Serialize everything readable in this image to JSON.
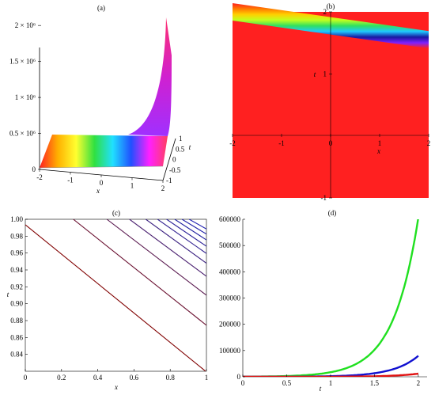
{
  "chart_data": [
    {
      "panel": "(a)",
      "type": "surface",
      "xlabel": "x",
      "ylabel": "t",
      "x_ticks": [
        "-2",
        "-1",
        "0",
        "1",
        "2"
      ],
      "t_ticks": [
        "1",
        "0.5",
        "0",
        "-0.5",
        "-1"
      ],
      "z_ticks": [
        "0",
        "0.5 × 10⁶",
        "1 × 10⁶",
        "1.5 × 10⁶",
        "2 × 10⁶"
      ],
      "z_values": [
        0,
        500000,
        1000000,
        1500000,
        2000000
      ],
      "xlim": [
        -2,
        2
      ],
      "tlim": [
        -1,
        1
      ],
      "zlim": [
        0,
        2200000
      ],
      "colormap": [
        "#ff2020",
        "#ffb000",
        "#ffff30",
        "#30e040",
        "#20e0ff",
        "#2050ff",
        "#ff20ff",
        "#ff4060"
      ]
    },
    {
      "panel": "(b)",
      "type": "heatmap",
      "xlabel": "x",
      "ylabel": "t",
      "x_ticks": [
        "-2",
        "-1",
        "0",
        "1",
        "2"
      ],
      "y_ticks": [
        "2",
        "1",
        "-1"
      ],
      "xlim": [
        -2,
        2
      ],
      "ylim": [
        -1,
        2
      ],
      "background_color": "#ff2020",
      "band": {
        "t_at_x_minus2": 2.0,
        "t_at_x_2": 1.55
      },
      "band_colors": [
        "#ff7a00",
        "#ffd000",
        "#c0ff20",
        "#30e060",
        "#20c8ff",
        "#1818a0",
        "#8020ff"
      ]
    },
    {
      "panel": "(c)",
      "type": "line",
      "xlabel": "x",
      "ylabel": "t",
      "x_ticks": [
        "0",
        "0.2",
        "0.4",
        "0.6",
        "0.8",
        "1"
      ],
      "y_ticks": [
        "1.00",
        "0.98",
        "0.96",
        "0.94",
        "0.92",
        "0.90",
        "0.88",
        "0.86",
        "0.84"
      ],
      "xlim": [
        0,
        1
      ],
      "ylim": [
        0.82,
        1.0
      ],
      "series": [
        {
          "color": "#800000",
          "points": [
            [
              0.0,
              0.9935
            ],
            [
              0.9955,
              0.82
            ]
          ]
        },
        {
          "color": "#6a1030",
          "points": [
            [
              0.265,
              1.0
            ],
            [
              1.0,
              0.8745
            ]
          ]
        },
        {
          "color": "#5a1a50",
          "points": [
            [
              0.45,
              1.0
            ],
            [
              1.0,
              0.91
            ]
          ]
        },
        {
          "color": "#4a2070",
          "points": [
            [
              0.575,
              1.0
            ],
            [
              1.0,
              0.9325
            ]
          ]
        },
        {
          "color": "#3a2080",
          "points": [
            [
              0.665,
              1.0
            ],
            [
              1.0,
              0.948
            ]
          ]
        },
        {
          "color": "#302090",
          "points": [
            [
              0.73,
              1.0
            ],
            [
              1.0,
              0.9595
            ]
          ]
        },
        {
          "color": "#2a2098",
          "points": [
            [
              0.78,
              1.0
            ],
            [
              1.0,
              0.968
            ]
          ]
        },
        {
          "color": "#2020a0",
          "points": [
            [
              0.825,
              1.0
            ],
            [
              1.0,
              0.9755
            ]
          ]
        },
        {
          "color": "#2020a8",
          "points": [
            [
              0.865,
              1.0
            ],
            [
              1.0,
              0.9825
            ]
          ]
        },
        {
          "color": "#2020b0",
          "points": [
            [
              0.905,
              1.0
            ],
            [
              1.0,
              0.9885
            ]
          ]
        }
      ]
    },
    {
      "panel": "(d)",
      "type": "line",
      "xlabel": "t",
      "ylabel": "",
      "x_ticks": [
        "0",
        "0.5",
        "1",
        "1.5",
        "2"
      ],
      "y_ticks": [
        "0",
        "100000",
        "200000",
        "300000",
        "400000",
        "500000",
        "600000"
      ],
      "xlim": [
        0,
        2.1
      ],
      "ylim": [
        0,
        600000
      ],
      "series": [
        {
          "color": "#20e020",
          "A": 500,
          "k": 3.55
        },
        {
          "color": "#1010d0",
          "A": 66,
          "k": 3.55
        },
        {
          "color": "#e01010",
          "A": 10,
          "k": 3.55
        }
      ]
    }
  ]
}
